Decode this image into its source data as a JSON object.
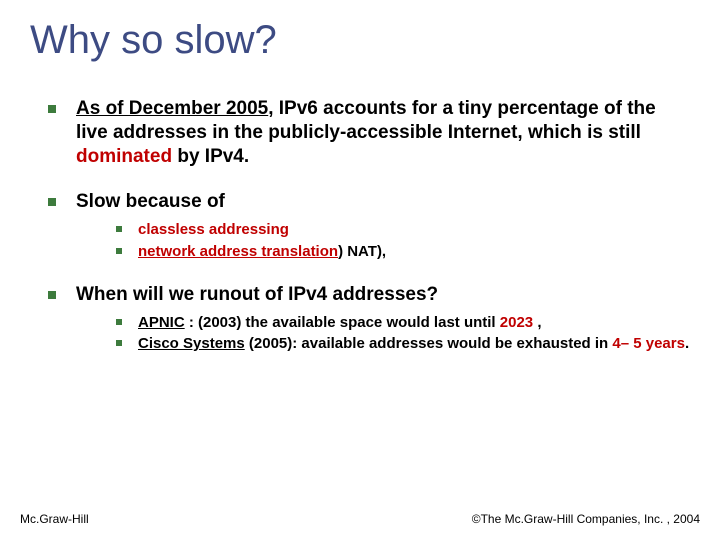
{
  "colors": {
    "title": "#3d4b83",
    "bullet": "#3d7b3d",
    "red": "#c00000",
    "text": "#000000",
    "background": "#ffffff"
  },
  "typography": {
    "title_family": "Comic Sans MS",
    "title_size_pt": 30,
    "body_family": "Verdana",
    "lvl1_size_pt": 14,
    "lvl2_size_pt": 11
  },
  "title": "Why so slow?",
  "b1": {
    "date": "As of December 2005",
    "mid1": ", IPv6 accounts for a tiny percentage of the live addresses in the publicly-accessible Internet, which is still ",
    "dominated": "dominated",
    "mid2": " by IPv4."
  },
  "b2": {
    "heading": "Slow because of",
    "sub1": "classless addressing",
    "sub2a": "network address translation",
    "sub2b": ") NAT),"
  },
  "b3": {
    "heading": "When will we runout of IPv4 addresses?",
    "s1": {
      "apnic": "APNIC",
      "mid": " : (2003) the available space would last until ",
      "year": "2023",
      "tail": " ,"
    },
    "s2": {
      "cisco": "Cisco Systems",
      "mid": " (2005): available addresses would be exhausted in ",
      "yrs": "4– 5 years",
      "tail": "."
    }
  },
  "footer": {
    "left": "Mc.Graw-Hill",
    "right": "©The Mc.Graw-Hill Companies, Inc. , 2004"
  }
}
